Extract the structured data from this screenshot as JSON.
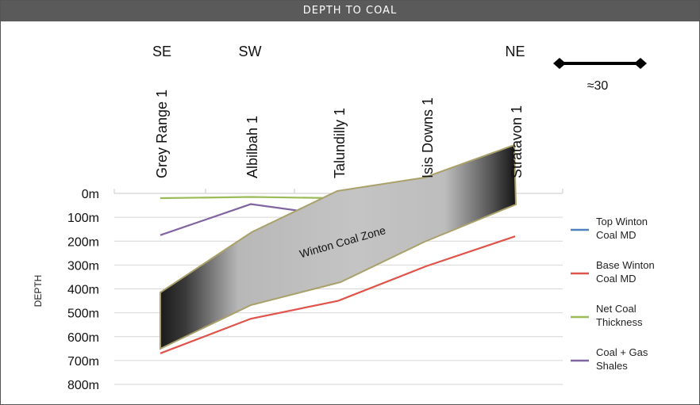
{
  "header": {
    "title": "DEPTH TO COAL"
  },
  "direction_labels": [
    "SE",
    "SW",
    "NE"
  ],
  "scale": {
    "label": "≈30"
  },
  "zone_label": "Winton Coal Zone",
  "chart_data": {
    "type": "line",
    "title": "DEPTH TO COAL",
    "ylabel": "DEPTH",
    "ylim": [
      0,
      800
    ],
    "y_inverted": true,
    "yticks": [
      "0m",
      "100m",
      "200m",
      "300m",
      "400m",
      "500m",
      "600m",
      "700m",
      "800m"
    ],
    "categories": [
      "Grey Range 1",
      "Albilbah 1",
      "Talundilly 1",
      "Isis Downs 1",
      "Stratavon 1"
    ],
    "series": [
      {
        "name": "Top Winton Coal MD",
        "color": "#4f81bd",
        "values": [
          470,
          390,
          null,
          null,
          30
        ]
      },
      {
        "name": "Base Winton Coal MD",
        "color": "#e0534a",
        "values": [
          670,
          525,
          450,
          305,
          180
        ]
      },
      {
        "name": "Net Coal Thickness",
        "color": "#9bbb59",
        "values": [
          20,
          15,
          20,
          15,
          10
        ]
      },
      {
        "name": "Coal + Gas Shales",
        "color": "#8064a2",
        "values": [
          175,
          45,
          95,
          null,
          null
        ]
      }
    ],
    "legend_position": "right",
    "grid": true
  }
}
